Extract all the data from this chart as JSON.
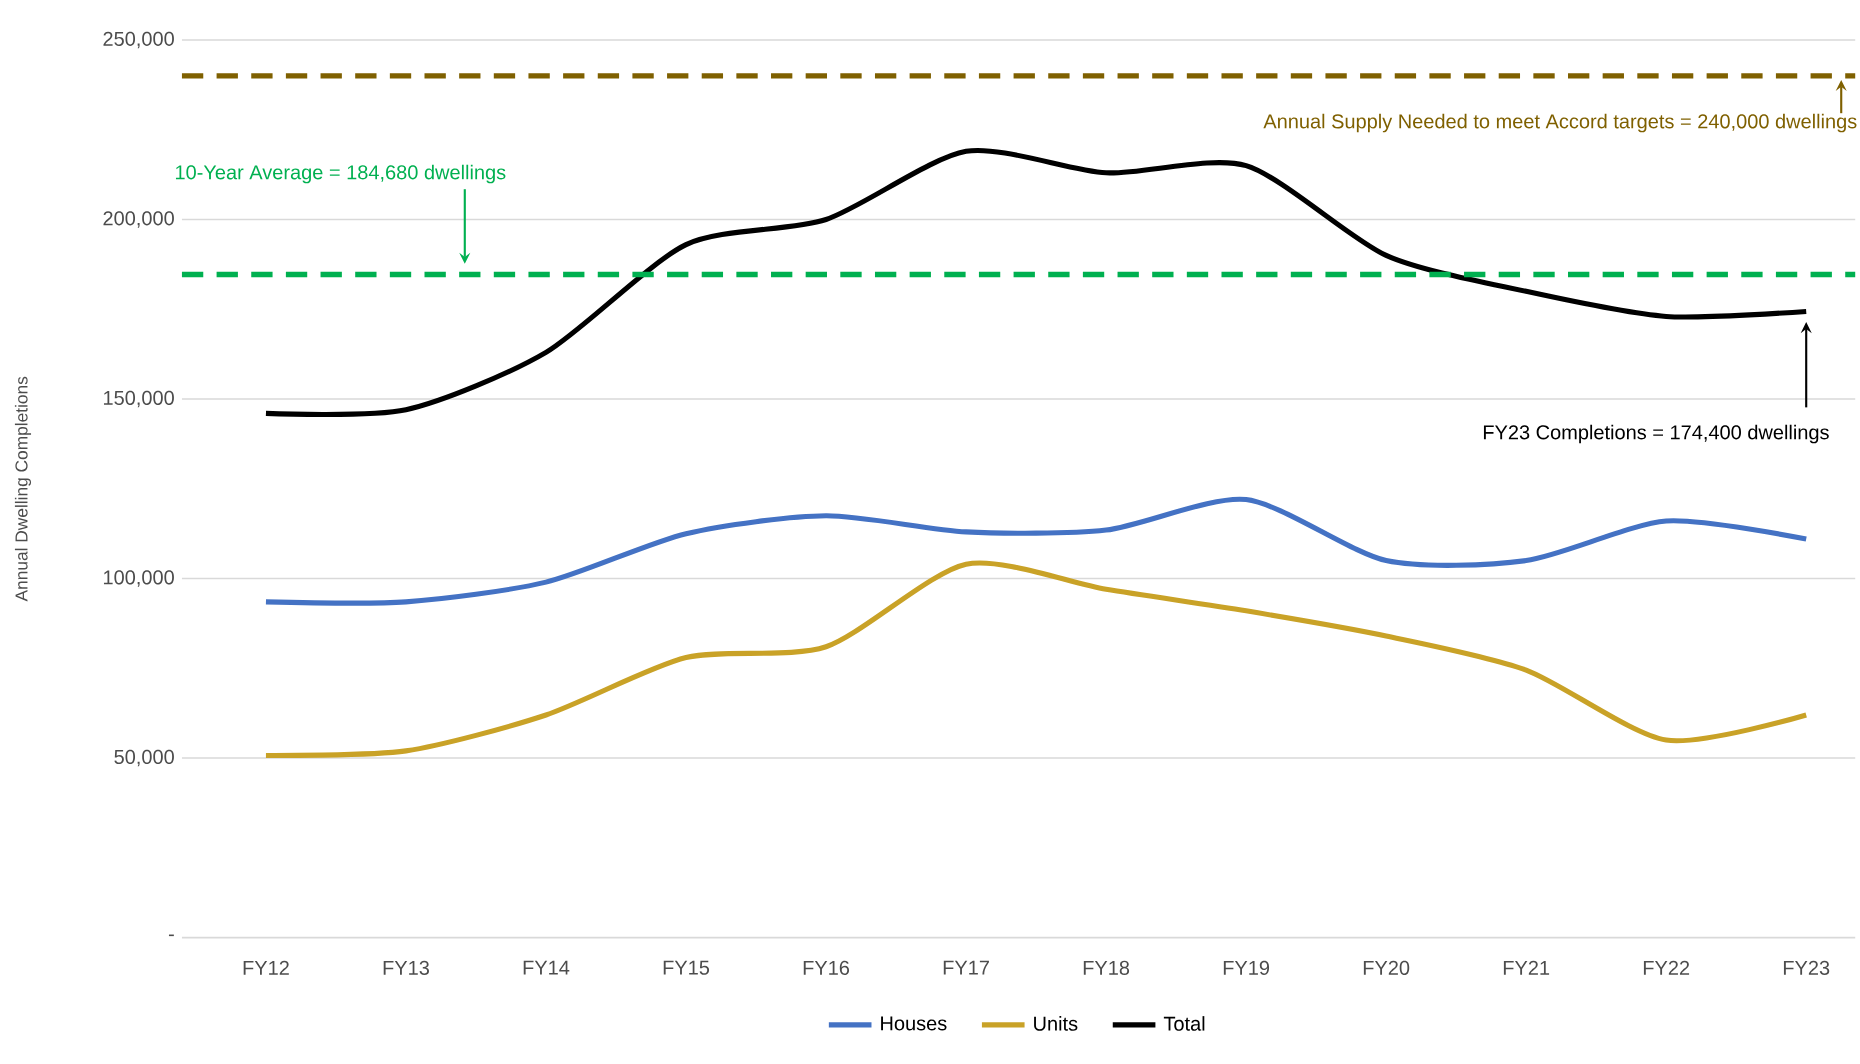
{
  "chart_data": {
    "type": "line",
    "ylabel": "Annual Dwelling Completions",
    "categories": [
      "FY12",
      "FY13",
      "FY14",
      "FY15",
      "FY16",
      "FY17",
      "FY18",
      "FY19",
      "FY20",
      "FY21",
      "FY22",
      "FY23"
    ],
    "series": [
      {
        "name": "Houses",
        "color": "#4472c4",
        "values": [
          93500,
          93500,
          99000,
          112500,
          117500,
          113000,
          113500,
          122000,
          105000,
          105000,
          116000,
          111000
        ]
      },
      {
        "name": "Units",
        "color": "#c9a227",
        "values": [
          50700,
          52000,
          62000,
          78000,
          81000,
          104000,
          97000,
          91000,
          84000,
          74500,
          55000,
          62000
        ]
      },
      {
        "name": "Total",
        "color": "#000000",
        "values": [
          146000,
          147000,
          163000,
          193000,
          200000,
          219000,
          213000,
          215000,
          190000,
          180000,
          173000,
          174400
        ]
      }
    ],
    "ylim": [
      0,
      250000
    ],
    "yticks": [
      {
        "value": 0,
        "label": "-"
      },
      {
        "value": 50000,
        "label": "50,000"
      },
      {
        "value": 100000,
        "label": "100,000"
      },
      {
        "value": 150000,
        "label": "150,000"
      },
      {
        "value": 200000,
        "label": "200,000"
      },
      {
        "value": 250000,
        "label": "250,000"
      }
    ],
    "ref_lines": [
      {
        "axis": "y",
        "value": 184680,
        "label": "10-Year Average = 184,680 dwellings",
        "color": "#00b050",
        "line_style": "dashed"
      },
      {
        "axis": "y",
        "value": 240000,
        "label": "Annual Supply Needed to meet Accord targets = 240,000 dwellings",
        "color": "#7f6000",
        "line_style": "dashed"
      }
    ],
    "annotations": [
      {
        "text": "FY23 Completions = 174,400 dwellings",
        "x": "FY23",
        "y": 174400
      }
    ],
    "grid": "y",
    "legend": "bottom",
    "line_style": "solid"
  }
}
